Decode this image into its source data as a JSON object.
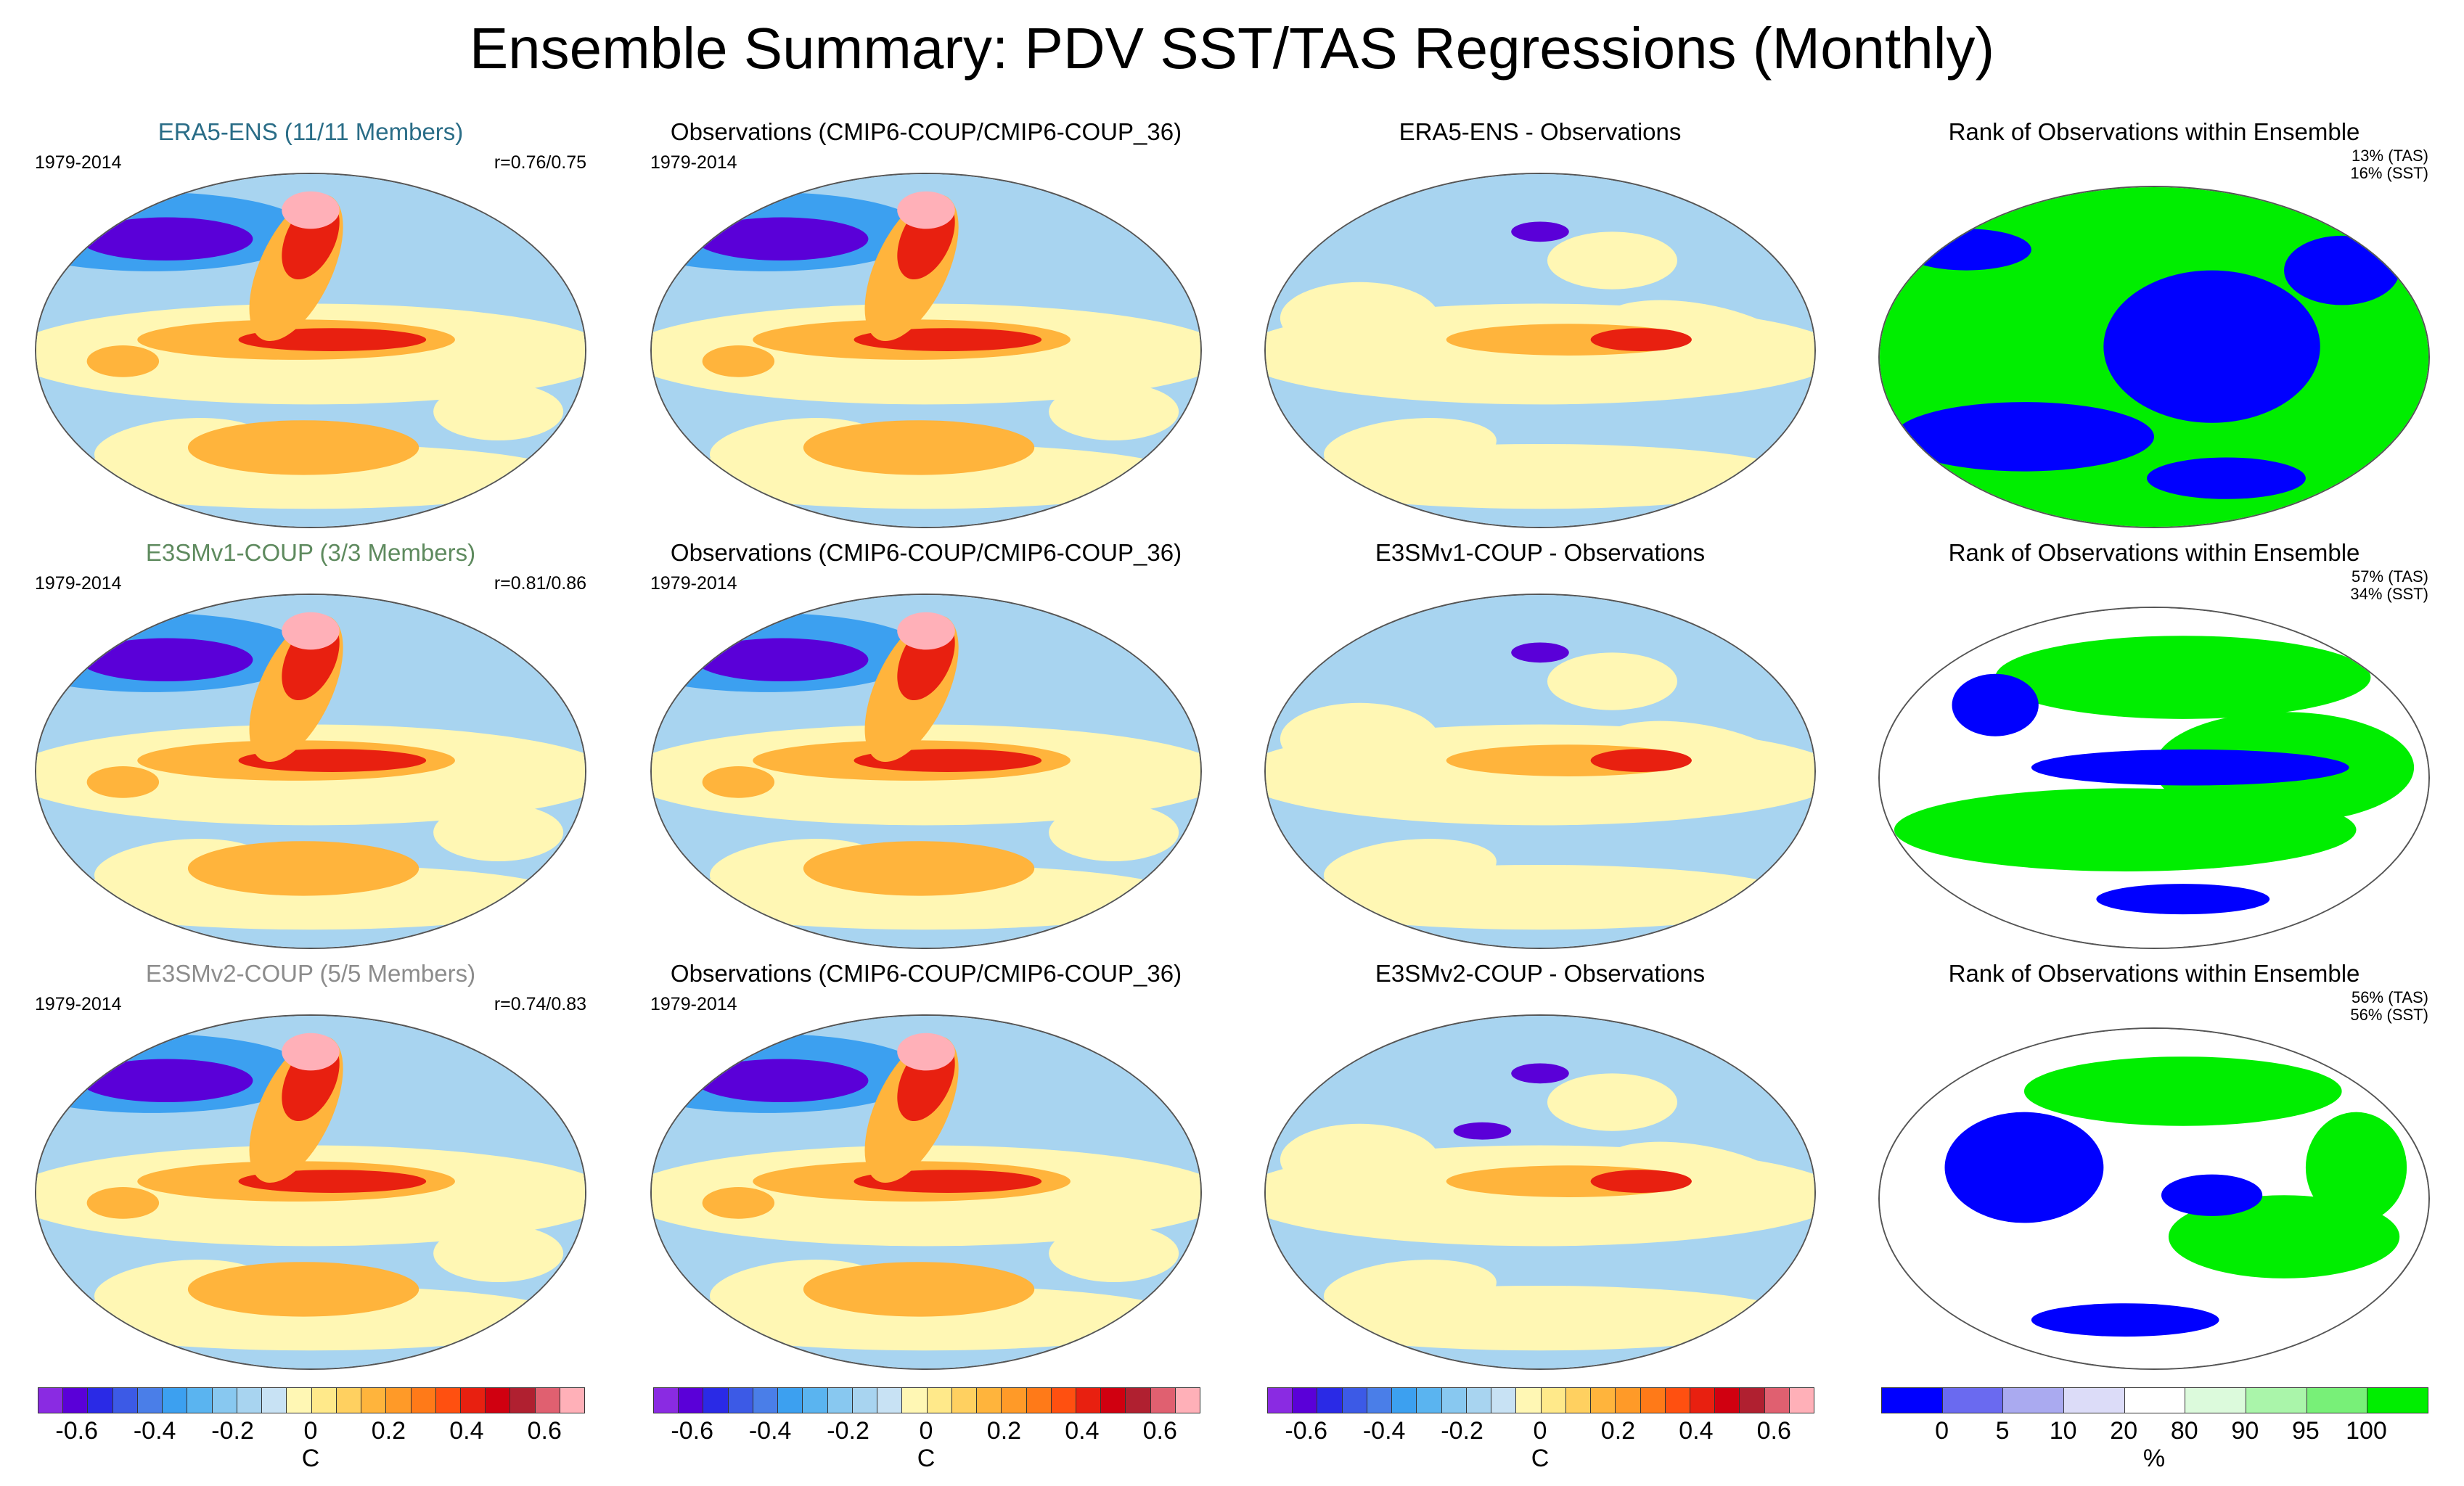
{
  "figure": {
    "title": "Ensemble Summary: PDV SST/TAS Regressions (Monthly)"
  },
  "chart_data": [
    {
      "type": "heatmap",
      "row": 1,
      "column": 1,
      "title": "ERA5-ENS (11/11 Members)",
      "title_color": "#2a6d87",
      "period": "1979-2014",
      "pattern_correlation": "r=0.76/0.75",
      "field": "regression",
      "units": "C",
      "value_range": [
        -0.7,
        0.7
      ]
    },
    {
      "type": "heatmap",
      "row": 1,
      "column": 2,
      "title": "Observations (CMIP6-COUP/CMIP6-COUP_36)",
      "title_color": "#000000",
      "period": "1979-2014",
      "field": "regression",
      "units": "C",
      "value_range": [
        -0.7,
        0.7
      ]
    },
    {
      "type": "heatmap",
      "row": 1,
      "column": 3,
      "title": "ERA5-ENS - Observations",
      "title_color": "#000000",
      "field": "difference",
      "units": "C",
      "value_range": [
        -0.7,
        0.7
      ]
    },
    {
      "type": "heatmap",
      "row": 1,
      "column": 4,
      "title": "Rank of Observations within Ensemble",
      "title_color": "#000000",
      "field": "rank",
      "units": "%",
      "rank_tas": "13% (TAS)",
      "rank_sst": "16% (SST)"
    },
    {
      "type": "heatmap",
      "row": 2,
      "column": 1,
      "title": "E3SMv1-COUP (3/3 Members)",
      "title_color": "#5e8a5e",
      "period": "1979-2014",
      "pattern_correlation": "r=0.81/0.86",
      "field": "regression",
      "units": "C",
      "value_range": [
        -0.7,
        0.7
      ]
    },
    {
      "type": "heatmap",
      "row": 2,
      "column": 2,
      "title": "Observations (CMIP6-COUP/CMIP6-COUP_36)",
      "title_color": "#000000",
      "period": "1979-2014",
      "field": "regression",
      "units": "C",
      "value_range": [
        -0.7,
        0.7
      ]
    },
    {
      "type": "heatmap",
      "row": 2,
      "column": 3,
      "title": "E3SMv1-COUP - Observations",
      "title_color": "#000000",
      "field": "difference",
      "units": "C",
      "value_range": [
        -0.7,
        0.7
      ]
    },
    {
      "type": "heatmap",
      "row": 2,
      "column": 4,
      "title": "Rank of Observations within Ensemble",
      "title_color": "#000000",
      "field": "rank",
      "units": "%",
      "rank_tas": "57% (TAS)",
      "rank_sst": "34% (SST)"
    },
    {
      "type": "heatmap",
      "row": 3,
      "column": 1,
      "title": "E3SMv2-COUP (5/5 Members)",
      "title_color": "#8c8c8c",
      "period": "1979-2014",
      "pattern_correlation": "r=0.74/0.83",
      "field": "regression",
      "units": "C",
      "value_range": [
        -0.7,
        0.7
      ]
    },
    {
      "type": "heatmap",
      "row": 3,
      "column": 2,
      "title": "Observations (CMIP6-COUP/CMIP6-COUP_36)",
      "title_color": "#000000",
      "period": "1979-2014",
      "field": "regression",
      "units": "C",
      "value_range": [
        -0.7,
        0.7
      ]
    },
    {
      "type": "heatmap",
      "row": 3,
      "column": 3,
      "title": "E3SMv2-COUP - Observations",
      "title_color": "#000000",
      "field": "difference",
      "units": "C",
      "value_range": [
        -0.7,
        0.7
      ]
    },
    {
      "type": "heatmap",
      "row": 3,
      "column": 4,
      "title": "Rank of Observations within Ensemble",
      "title_color": "#000000",
      "field": "rank",
      "units": "%",
      "rank_tas": "56% (TAS)",
      "rank_sst": "56% (SST)"
    }
  ],
  "colorbars": {
    "regression": {
      "units": "C",
      "tick_labels": [
        "-0.6",
        "-0.4",
        "-0.2",
        "0",
        "0.2",
        "0.4",
        "0.6"
      ],
      "tick_values": [
        -0.6,
        -0.4,
        -0.2,
        0,
        0.2,
        0.4,
        0.6
      ],
      "range": [
        -0.7,
        0.7
      ],
      "colors": [
        "#8a2be2",
        "#5a00d8",
        "#2a2ae6",
        "#3c5ae6",
        "#4a7ee8",
        "#3ca0f0",
        "#5ab4f0",
        "#88c8f0",
        "#a8d4f0",
        "#c8e2f4",
        "#fff7b4",
        "#ffe98a",
        "#ffd060",
        "#ffb43c",
        "#ff9a28",
        "#ff7a18",
        "#ff5010",
        "#e82010",
        "#d00010",
        "#b02030",
        "#e06070",
        "#ffb0b8"
      ]
    },
    "rank": {
      "units": "%",
      "tick_labels": [
        "0",
        "5",
        "10",
        "20",
        "80",
        "90",
        "95",
        "100"
      ],
      "colors": [
        "#0000ff",
        "#6a6af0",
        "#aaaaf0",
        "#dcdcf8",
        "#ffffff",
        "#dcfadc",
        "#aaf5aa",
        "#78f078",
        "#00ee00"
      ]
    }
  },
  "colors": {
    "cold_strong": "#5a00d8",
    "cold": "#3ca0f0",
    "cool": "#a8d4f0",
    "neutral": "#fff7b4",
    "warm": "#ffb43c",
    "hot": "#e82010",
    "extreme": "#ffb0b8",
    "rank_low": "#0000ff",
    "rank_high": "#00ee00"
  }
}
